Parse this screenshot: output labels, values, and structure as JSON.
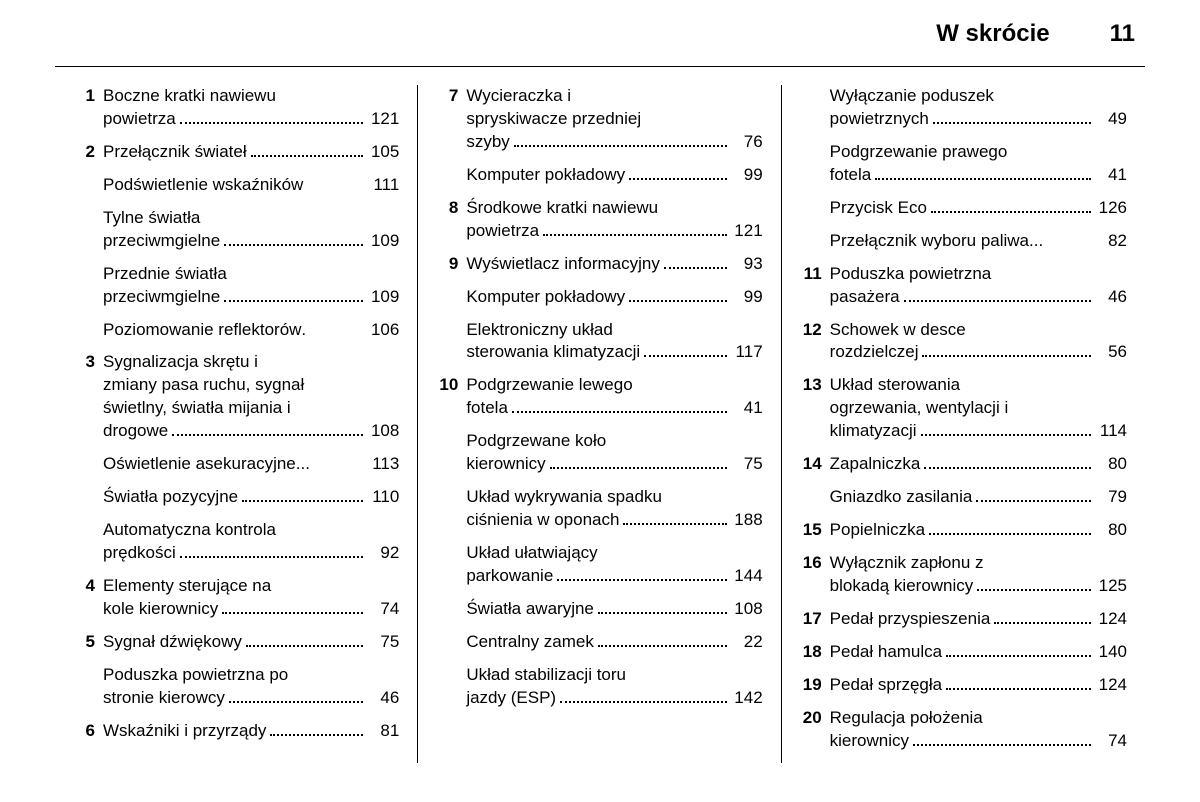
{
  "header": {
    "title": "W skrócie",
    "page": "11"
  },
  "columns": [
    [
      {
        "num": "1",
        "lines": [
          "Boczne kratki nawiewu"
        ],
        "last": "powietrza",
        "page": "121"
      },
      {
        "num": "2",
        "lines": [],
        "last": "Przełącznik świateł",
        "page": "105"
      },
      {
        "num": "",
        "lines": [],
        "last": "Podświetlenie wskaźników",
        "page": "111",
        "nodots": true
      },
      {
        "num": "",
        "lines": [
          "Tylne światła"
        ],
        "last": "przeciwmgielne",
        "page": "109"
      },
      {
        "num": "",
        "lines": [
          "Przednie światła"
        ],
        "last": "przeciwmgielne",
        "page": "109"
      },
      {
        "num": "",
        "lines": [],
        "last": "Poziomowanie reflektorów",
        "page": "106",
        "tight": true
      },
      {
        "num": "3",
        "lines": [
          "Sygnalizacja skrętu i",
          "zmiany pasa ruchu, sygnał",
          "świetlny, światła mijania i"
        ],
        "last": "drogowe",
        "page": "108"
      },
      {
        "num": "",
        "lines": [],
        "last": "Oświetlenie asekuracyjne",
        "page": "113",
        "ell": true
      },
      {
        "num": "",
        "lines": [],
        "last": "Światła pozycyjne",
        "page": "110"
      },
      {
        "num": "",
        "lines": [
          "Automatyczna kontrola"
        ],
        "last": "prędkości",
        "page": "92"
      },
      {
        "num": "4",
        "lines": [
          "Elementy sterujące na"
        ],
        "last": "kole kierownicy",
        "page": "74"
      },
      {
        "num": "5",
        "lines": [],
        "last": "Sygnał dźwiękowy",
        "page": "75"
      },
      {
        "num": "",
        "lines": [
          "Poduszka powietrzna po"
        ],
        "last": "stronie kierowcy",
        "page": "46"
      },
      {
        "num": "6",
        "lines": [],
        "last": "Wskaźniki i przyrządy",
        "page": "81"
      }
    ],
    [
      {
        "num": "7",
        "lines": [
          "Wycieraczka i",
          "spryskiwacze przedniej"
        ],
        "last": "szyby",
        "page": "76"
      },
      {
        "num": "",
        "lines": [],
        "last": "Komputer pokładowy",
        "page": "99"
      },
      {
        "num": "8",
        "lines": [
          "Środkowe kratki nawiewu"
        ],
        "last": "powietrza",
        "page": "121"
      },
      {
        "num": "9",
        "lines": [],
        "last": "Wyświetlacz informacyjny",
        "page": "93"
      },
      {
        "num": "",
        "lines": [],
        "last": "Komputer pokładowy",
        "page": "99"
      },
      {
        "num": "",
        "lines": [
          "Elektroniczny układ"
        ],
        "last": "sterowania klimatyzacji",
        "page": "117"
      },
      {
        "num": "10",
        "lines": [
          "Podgrzewanie lewego"
        ],
        "last": "fotela",
        "page": "41"
      },
      {
        "num": "",
        "lines": [
          "Podgrzewane koło"
        ],
        "last": "kierownicy",
        "page": "75"
      },
      {
        "num": "",
        "lines": [
          "Układ wykrywania spadku"
        ],
        "last": "ciśnienia w oponach",
        "page": "188"
      },
      {
        "num": "",
        "lines": [
          "Układ ułatwiający"
        ],
        "last": "parkowanie",
        "page": "144"
      },
      {
        "num": "",
        "lines": [],
        "last": "Światła awaryjne",
        "page": "108"
      },
      {
        "num": "",
        "lines": [],
        "last": "Centralny zamek",
        "page": "22"
      },
      {
        "num": "",
        "lines": [
          "Układ stabilizacji toru"
        ],
        "last": "jazdy (ESP)",
        "page": "142"
      }
    ],
    [
      {
        "num": "",
        "lines": [
          "Wyłączanie poduszek"
        ],
        "last": "powietrznych",
        "page": "49"
      },
      {
        "num": "",
        "lines": [
          "Podgrzewanie prawego"
        ],
        "last": "fotela",
        "page": "41"
      },
      {
        "num": "",
        "lines": [],
        "last": "Przycisk Eco",
        "page": "126"
      },
      {
        "num": "",
        "lines": [],
        "last": "Przełącznik wyboru paliwa",
        "page": "82",
        "ell": true
      },
      {
        "num": "11",
        "lines": [
          "Poduszka powietrzna"
        ],
        "last": "pasażera",
        "page": "46"
      },
      {
        "num": "12",
        "lines": [
          "Schowek w desce"
        ],
        "last": "rozdzielczej",
        "page": "56"
      },
      {
        "num": "13",
        "lines": [
          "Układ sterowania",
          "ogrzewania, wentylacji i"
        ],
        "last": "klimatyzacji",
        "page": "114"
      },
      {
        "num": "14",
        "lines": [],
        "last": "Zapalniczka",
        "page": "80"
      },
      {
        "num": "",
        "lines": [],
        "last": "Gniazdko zasilania",
        "page": "79"
      },
      {
        "num": "15",
        "lines": [],
        "last": "Popielniczka",
        "page": "80"
      },
      {
        "num": "16",
        "lines": [
          "Wyłącznik zapłonu z"
        ],
        "last": "blokadą kierownicy",
        "page": "125"
      },
      {
        "num": "17",
        "lines": [],
        "last": "Pedał przyspieszenia",
        "page": "124"
      },
      {
        "num": "18",
        "lines": [],
        "last": "Pedał hamulca",
        "page": "140"
      },
      {
        "num": "19",
        "lines": [],
        "last": "Pedał sprzęgła",
        "page": "124"
      },
      {
        "num": "20",
        "lines": [
          "Regulacja położenia"
        ],
        "last": "kierownicy",
        "page": "74"
      }
    ]
  ]
}
